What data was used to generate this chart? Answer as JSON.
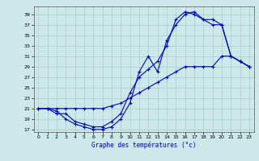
{
  "background_color": "#cce8e8",
  "grid_color": "#aacccc",
  "line_color": "#0000cc",
  "xlabel": "Graphe des températures (°c)",
  "xlim": [
    -0.5,
    23.5
  ],
  "ylim": [
    16.5,
    40.5
  ],
  "yticks": [
    17,
    19,
    21,
    23,
    25,
    27,
    29,
    31,
    33,
    35,
    37,
    39
  ],
  "xticks": [
    0,
    1,
    2,
    3,
    4,
    5,
    6,
    7,
    8,
    9,
    10,
    11,
    12,
    13,
    14,
    15,
    16,
    17,
    18,
    19,
    20,
    21,
    22,
    23
  ],
  "curve1_x": [
    0,
    1,
    2,
    3,
    4,
    5,
    6,
    7,
    8,
    9,
    10,
    11,
    12,
    13,
    14,
    15,
    16,
    17,
    18,
    19,
    20,
    21,
    22,
    23
  ],
  "curve1_y": [
    21,
    21,
    20.5,
    19,
    18,
    17.5,
    17,
    17,
    17.5,
    19,
    22,
    28,
    31,
    28,
    34,
    37,
    39,
    39.5,
    38,
    38,
    37,
    31,
    30,
    29
  ],
  "curve2_x": [
    0,
    1,
    2,
    3,
    4,
    5,
    6,
    7,
    8,
    9,
    10,
    11,
    12,
    13,
    14,
    15,
    16,
    17,
    18,
    19,
    20,
    21,
    22,
    23
  ],
  "curve2_y": [
    21,
    21,
    20,
    20,
    18.5,
    18,
    17.5,
    17.5,
    18.5,
    20,
    24,
    27,
    28.5,
    30,
    33,
    38,
    39.5,
    39,
    38,
    37,
    37,
    31,
    30,
    29
  ],
  "curve3_x": [
    0,
    1,
    2,
    3,
    4,
    5,
    6,
    7,
    8,
    9,
    10,
    11,
    12,
    13,
    14,
    15,
    16,
    17,
    18,
    19,
    20,
    21,
    22,
    23
  ],
  "curve3_y": [
    21,
    21,
    21,
    21,
    21,
    21,
    21,
    21,
    21.5,
    22,
    23,
    24,
    25,
    26,
    27,
    28,
    29,
    29,
    29,
    29,
    31,
    31,
    30,
    29
  ]
}
